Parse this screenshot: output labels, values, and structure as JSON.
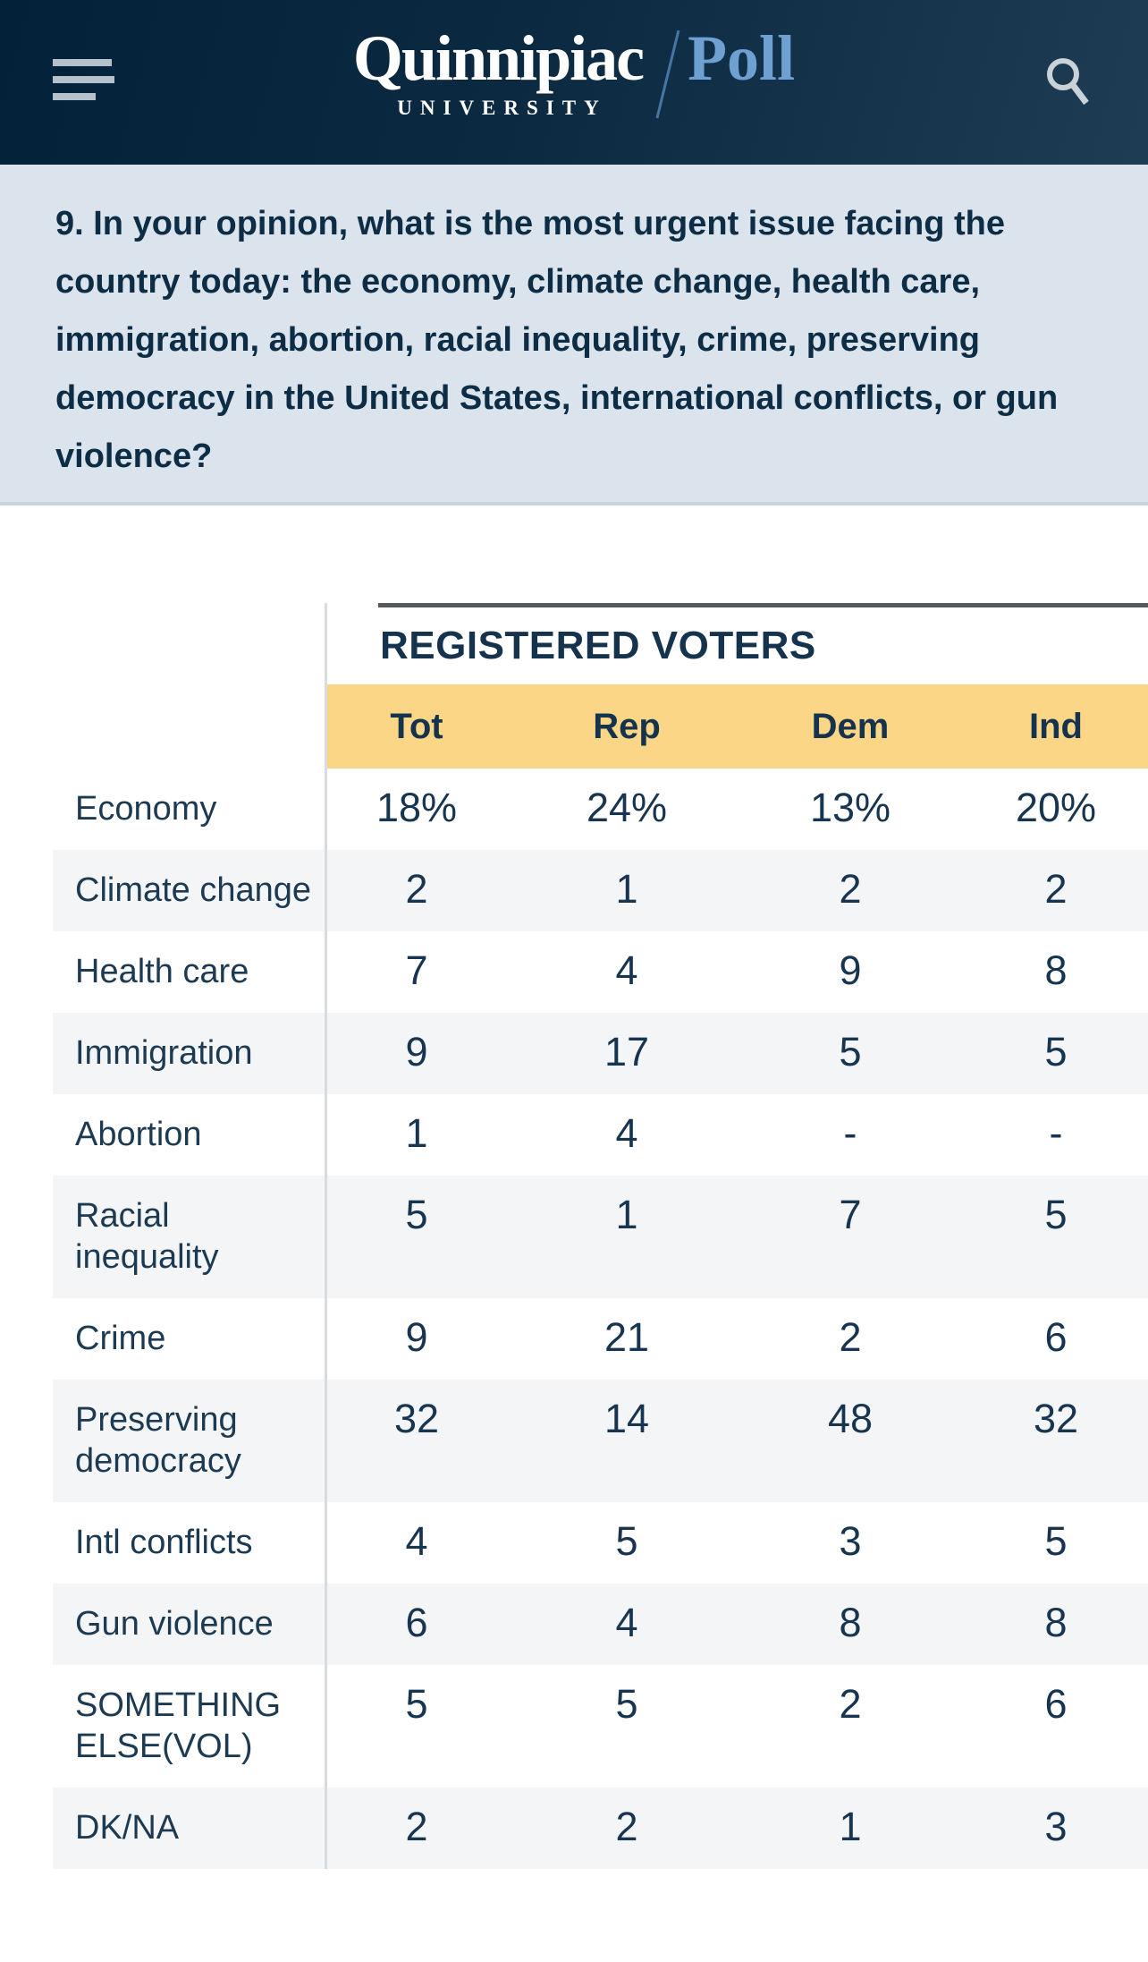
{
  "header": {
    "menu_icon": "hamburger-icon",
    "search_icon": "magnifier-icon",
    "logo": {
      "name": "Quinnipiac",
      "poll": "Poll",
      "university": "U N I V E R S I T Y",
      "university_plain": "UNIVERSITY"
    }
  },
  "question": {
    "text": "9. In your opinion, what is the most urgent issue facing the country today: the economy, climate change, health care, immigration, abortion, racial inequality, crime, preserving democracy in the United States, international conflicts, or gun violence?"
  },
  "table": {
    "group_header": "REGISTERED VOTERS",
    "columns": [
      "Tot",
      "Rep",
      "Dem",
      "Ind"
    ],
    "rows": [
      {
        "label": "Economy",
        "values": [
          "18%",
          "24%",
          "13%",
          "20%"
        ]
      },
      {
        "label": "Climate change",
        "values": [
          "2",
          "1",
          "2",
          "2"
        ]
      },
      {
        "label": "Health care",
        "values": [
          "7",
          "4",
          "9",
          "8"
        ]
      },
      {
        "label": "Immigration",
        "values": [
          "9",
          "17",
          "5",
          "5"
        ]
      },
      {
        "label": "Abortion",
        "values": [
          "1",
          "4",
          "-",
          "-"
        ]
      },
      {
        "label": "Racial inequality",
        "values": [
          "5",
          "1",
          "7",
          "5"
        ]
      },
      {
        "label": "Crime",
        "values": [
          "9",
          "21",
          "2",
          "6"
        ]
      },
      {
        "label": "Preserving democracy",
        "values": [
          "32",
          "14",
          "48",
          "32"
        ]
      },
      {
        "label": "Intl conflicts",
        "values": [
          "4",
          "5",
          "3",
          "5"
        ]
      },
      {
        "label": "Gun violence",
        "values": [
          "6",
          "4",
          "8",
          "8"
        ]
      },
      {
        "label": "SOMETHING ELSE(VOL)",
        "values": [
          "5",
          "5",
          "2",
          "6"
        ]
      },
      {
        "label": "DK/NA",
        "values": [
          "2",
          "2",
          "1",
          "3"
        ]
      }
    ]
  },
  "colors": {
    "header_navy_dark": "#03223a",
    "header_navy_light": "#1e3d55",
    "poll_blue": "#6fa0d2",
    "slash_blue": "#4576a6",
    "question_bg": "#dbe4ec",
    "question_text": "#0d2d46",
    "table_header_yellow": "#fbd687",
    "row_stripe_gray": "#f3f5f7",
    "table_text_navy": "#16334d",
    "icon_gray": "#b5c2cb"
  }
}
